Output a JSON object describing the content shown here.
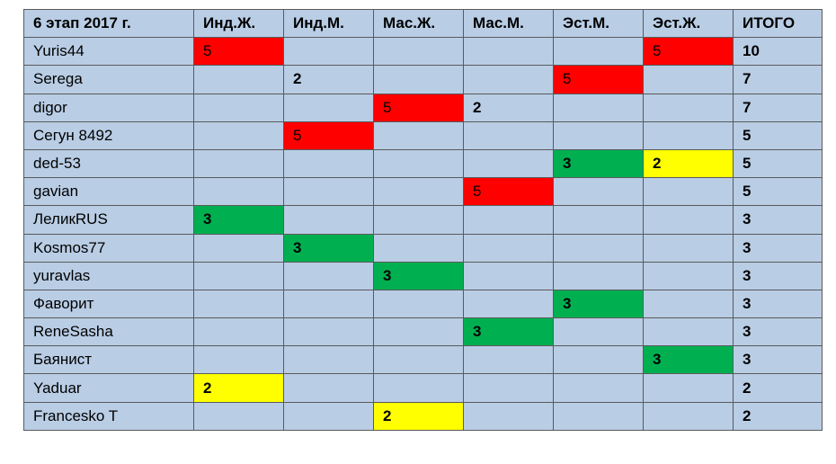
{
  "headers": [
    "6 этап 2017 г.",
    "Инд.Ж.",
    "Инд.М.",
    "Мас.Ж.",
    "Мас.М.",
    "Эст.М.",
    "Эст.Ж.",
    "ИТОГО"
  ],
  "colors": {
    "red": "#ff0000",
    "green": "#00b050",
    "yellow": "#ffff00",
    "cell": "#b9cde5"
  },
  "rows": [
    {
      "name": "Yuris44",
      "cells": [
        {
          "v": "5",
          "c": "red"
        },
        {
          "v": "",
          "c": ""
        },
        {
          "v": "",
          "c": ""
        },
        {
          "v": "",
          "c": ""
        },
        {
          "v": "",
          "c": ""
        },
        {
          "v": "5",
          "c": "red"
        }
      ],
      "total": "10"
    },
    {
      "name": "Serega",
      "cells": [
        {
          "v": "",
          "c": ""
        },
        {
          "v": "2",
          "c": ""
        },
        {
          "v": "",
          "c": ""
        },
        {
          "v": "",
          "c": ""
        },
        {
          "v": "5",
          "c": "red"
        },
        {
          "v": "",
          "c": ""
        }
      ],
      "total": "7"
    },
    {
      "name": "digor",
      "cells": [
        {
          "v": "",
          "c": ""
        },
        {
          "v": "",
          "c": ""
        },
        {
          "v": "5",
          "c": "red"
        },
        {
          "v": "2",
          "c": ""
        },
        {
          "v": "",
          "c": ""
        },
        {
          "v": "",
          "c": ""
        }
      ],
      "total": "7"
    },
    {
      "name": "Сегун 8492",
      "cells": [
        {
          "v": "",
          "c": ""
        },
        {
          "v": "5",
          "c": "red"
        },
        {
          "v": "",
          "c": ""
        },
        {
          "v": "",
          "c": ""
        },
        {
          "v": "",
          "c": ""
        },
        {
          "v": "",
          "c": ""
        }
      ],
      "total": "5"
    },
    {
      "name": "ded-53",
      "cells": [
        {
          "v": "",
          "c": ""
        },
        {
          "v": "",
          "c": ""
        },
        {
          "v": "",
          "c": ""
        },
        {
          "v": "",
          "c": ""
        },
        {
          "v": "3",
          "c": "green"
        },
        {
          "v": "2",
          "c": "yellow"
        }
      ],
      "total": "5"
    },
    {
      "name": "gavian",
      "cells": [
        {
          "v": "",
          "c": ""
        },
        {
          "v": "",
          "c": ""
        },
        {
          "v": "",
          "c": ""
        },
        {
          "v": "5",
          "c": "red"
        },
        {
          "v": "",
          "c": ""
        },
        {
          "v": "",
          "c": ""
        }
      ],
      "total": "5"
    },
    {
      "name": "ЛеликRUS",
      "cells": [
        {
          "v": "3",
          "c": "green"
        },
        {
          "v": "",
          "c": ""
        },
        {
          "v": "",
          "c": ""
        },
        {
          "v": "",
          "c": ""
        },
        {
          "v": "",
          "c": ""
        },
        {
          "v": "",
          "c": ""
        }
      ],
      "total": "3"
    },
    {
      "name": "Kosmos77",
      "cells": [
        {
          "v": "",
          "c": ""
        },
        {
          "v": "3",
          "c": "green"
        },
        {
          "v": "",
          "c": ""
        },
        {
          "v": "",
          "c": ""
        },
        {
          "v": "",
          "c": ""
        },
        {
          "v": "",
          "c": ""
        }
      ],
      "total": "3"
    },
    {
      "name": "yuravlas",
      "cells": [
        {
          "v": "",
          "c": ""
        },
        {
          "v": "",
          "c": ""
        },
        {
          "v": "3",
          "c": "green"
        },
        {
          "v": "",
          "c": ""
        },
        {
          "v": "",
          "c": ""
        },
        {
          "v": "",
          "c": ""
        }
      ],
      "total": "3"
    },
    {
      "name": "Фаворит",
      "cells": [
        {
          "v": "",
          "c": ""
        },
        {
          "v": "",
          "c": ""
        },
        {
          "v": "",
          "c": ""
        },
        {
          "v": "",
          "c": ""
        },
        {
          "v": "3",
          "c": "green"
        },
        {
          "v": "",
          "c": ""
        }
      ],
      "total": "3"
    },
    {
      "name": "ReneSasha",
      "cells": [
        {
          "v": "",
          "c": ""
        },
        {
          "v": "",
          "c": ""
        },
        {
          "v": "",
          "c": ""
        },
        {
          "v": "3",
          "c": "green"
        },
        {
          "v": "",
          "c": ""
        },
        {
          "v": "",
          "c": ""
        }
      ],
      "total": "3"
    },
    {
      "name": "Баянист",
      "cells": [
        {
          "v": "",
          "c": ""
        },
        {
          "v": "",
          "c": ""
        },
        {
          "v": "",
          "c": ""
        },
        {
          "v": "",
          "c": ""
        },
        {
          "v": "",
          "c": ""
        },
        {
          "v": "3",
          "c": "green"
        }
      ],
      "total": "3"
    },
    {
      "name": "Yaduar",
      "cells": [
        {
          "v": "2",
          "c": "yellow"
        },
        {
          "v": "",
          "c": ""
        },
        {
          "v": "",
          "c": ""
        },
        {
          "v": "",
          "c": ""
        },
        {
          "v": "",
          "c": ""
        },
        {
          "v": "",
          "c": ""
        }
      ],
      "total": "2"
    },
    {
      "name": "Francesko T",
      "cells": [
        {
          "v": "",
          "c": ""
        },
        {
          "v": "",
          "c": ""
        },
        {
          "v": "2",
          "c": "yellow"
        },
        {
          "v": "",
          "c": ""
        },
        {
          "v": "",
          "c": ""
        },
        {
          "v": "",
          "c": ""
        }
      ],
      "total": "2"
    }
  ]
}
